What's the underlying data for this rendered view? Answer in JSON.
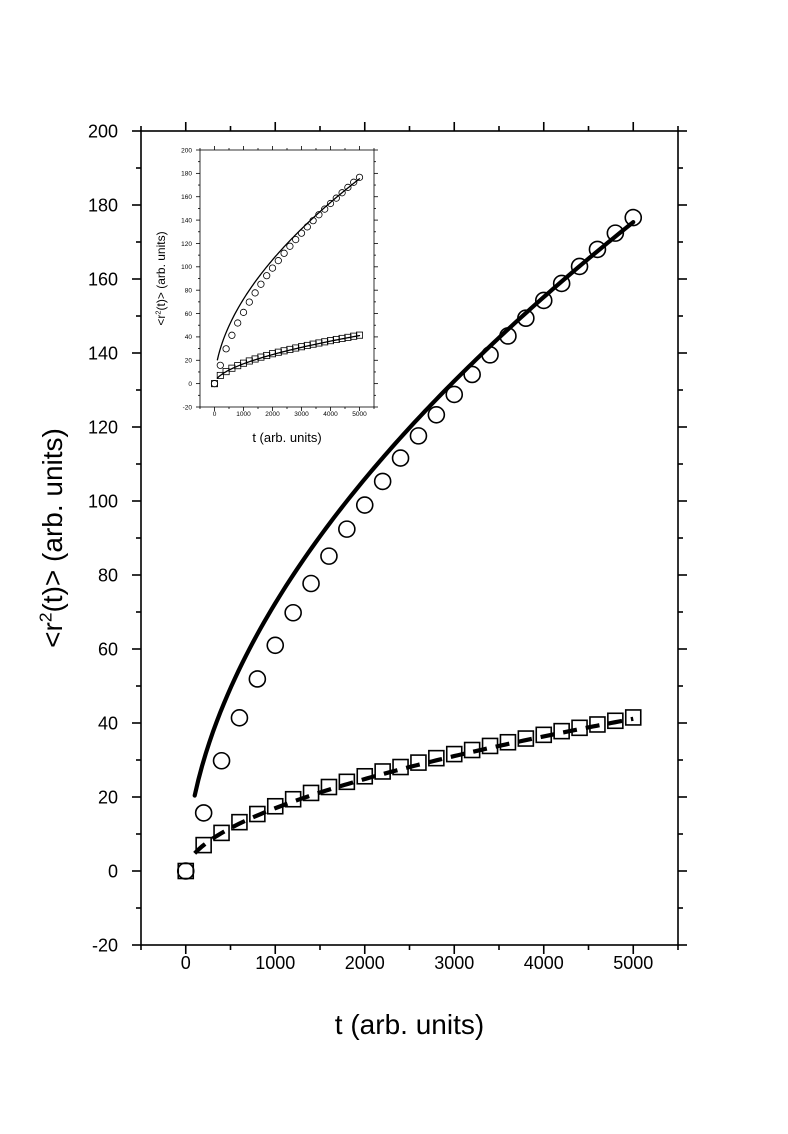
{
  "chart_data": [
    {
      "id": "main",
      "type": "scatter",
      "title": "",
      "xlabel": "t (arb. units)",
      "ylabel_prefix": "<r",
      "ylabel_sup": "2",
      "ylabel_suffix": "(t)> (arb. units)",
      "xlim": [
        -500,
        5500
      ],
      "ylim": [
        -20,
        200
      ],
      "xticks": [
        0,
        1000,
        2000,
        3000,
        4000,
        5000
      ],
      "yticks": [
        -20,
        0,
        20,
        40,
        60,
        80,
        100,
        120,
        140,
        160,
        180,
        200
      ],
      "grid": false,
      "legend": "none",
      "series": [
        {
          "name": "circles",
          "marker": "circle",
          "x": [
            0,
            200,
            400,
            600,
            800,
            1000,
            1200,
            1400,
            1600,
            1800,
            2000,
            2200,
            2400,
            2600,
            2800,
            3000,
            3200,
            3400,
            3600,
            3800,
            4000,
            4200,
            4400,
            4600,
            4800,
            5000
          ],
          "y": [
            0,
            15.7,
            29.8,
            41.4,
            51.9,
            61.0,
            69.8,
            77.7,
            85.1,
            92.4,
            98.9,
            105.3,
            111.6,
            117.6,
            123.3,
            128.8,
            134.2,
            139.5,
            144.6,
            149.4,
            154.2,
            158.8,
            163.4,
            168.0,
            172.4,
            176.6
          ]
        },
        {
          "name": "squares",
          "marker": "square",
          "x": [
            0,
            200,
            400,
            600,
            800,
            1000,
            1200,
            1400,
            1600,
            1800,
            2000,
            2200,
            2400,
            2600,
            2800,
            3000,
            3200,
            3400,
            3600,
            3800,
            4000,
            4200,
            4400,
            4600,
            4800,
            5000
          ],
          "y": [
            0,
            7.0,
            10.3,
            13.2,
            15.4,
            17.5,
            19.4,
            21.1,
            22.7,
            24.1,
            25.6,
            26.9,
            28.1,
            29.3,
            30.5,
            31.6,
            32.7,
            33.8,
            34.8,
            35.8,
            36.8,
            37.8,
            38.7,
            39.6,
            40.6,
            41.5
          ]
        }
      ],
      "fits": [
        {
          "name": "circle fit",
          "style": "solid",
          "a": 1.62,
          "b": 0.55,
          "x_range": [
            100,
            5000
          ]
        },
        {
          "name": "square fit",
          "style": "dashed",
          "a": 0.38,
          "b": 0.55,
          "x_range": [
            100,
            5000
          ]
        }
      ]
    },
    {
      "id": "inset",
      "type": "scatter",
      "title": "",
      "xlabel": "t (arb. units)",
      "ylabel_prefix": "<r",
      "ylabel_sup": "2",
      "ylabel_suffix": "(t)> (arb. units)",
      "xlim": [
        -500,
        5500
      ],
      "ylim": [
        -20,
        200
      ],
      "xticks": [
        0,
        1000,
        2000,
        3000,
        4000,
        5000
      ],
      "yticks": [
        -20,
        0,
        20,
        40,
        60,
        80,
        100,
        120,
        140,
        160,
        180,
        200
      ],
      "grid": false,
      "legend": "none",
      "series": [
        {
          "name": "circles",
          "marker": "circle",
          "x": [
            0,
            200,
            400,
            600,
            800,
            1000,
            1200,
            1400,
            1600,
            1800,
            2000,
            2200,
            2400,
            2600,
            2800,
            3000,
            3200,
            3400,
            3600,
            3800,
            4000,
            4200,
            4400,
            4600,
            4800,
            5000
          ],
          "y": [
            0,
            15.7,
            29.8,
            41.4,
            51.9,
            61.0,
            69.8,
            77.7,
            85.1,
            92.4,
            98.9,
            105.3,
            111.6,
            117.6,
            123.3,
            128.8,
            134.2,
            139.5,
            144.6,
            149.4,
            154.2,
            158.8,
            163.4,
            168.0,
            172.4,
            176.6
          ]
        },
        {
          "name": "squares",
          "marker": "square",
          "x": [
            0,
            200,
            400,
            600,
            800,
            1000,
            1200,
            1400,
            1600,
            1800,
            2000,
            2200,
            2400,
            2600,
            2800,
            3000,
            3200,
            3400,
            3600,
            3800,
            4000,
            4200,
            4400,
            4600,
            4800,
            5000
          ],
          "y": [
            0,
            7.0,
            10.3,
            13.2,
            15.4,
            17.5,
            19.4,
            21.1,
            22.7,
            24.1,
            25.6,
            26.9,
            28.1,
            29.3,
            30.5,
            31.6,
            32.7,
            33.8,
            34.8,
            35.8,
            36.8,
            37.8,
            38.7,
            39.6,
            40.6,
            41.5
          ]
        }
      ],
      "fits": [
        {
          "name": "circle fit",
          "style": "solid",
          "a": 1.62,
          "b": 0.55,
          "x_range": [
            100,
            5000
          ]
        },
        {
          "name": "square fit",
          "style": "solid",
          "a": 0.38,
          "b": 0.55,
          "x_range": [
            100,
            5000
          ]
        }
      ]
    }
  ]
}
